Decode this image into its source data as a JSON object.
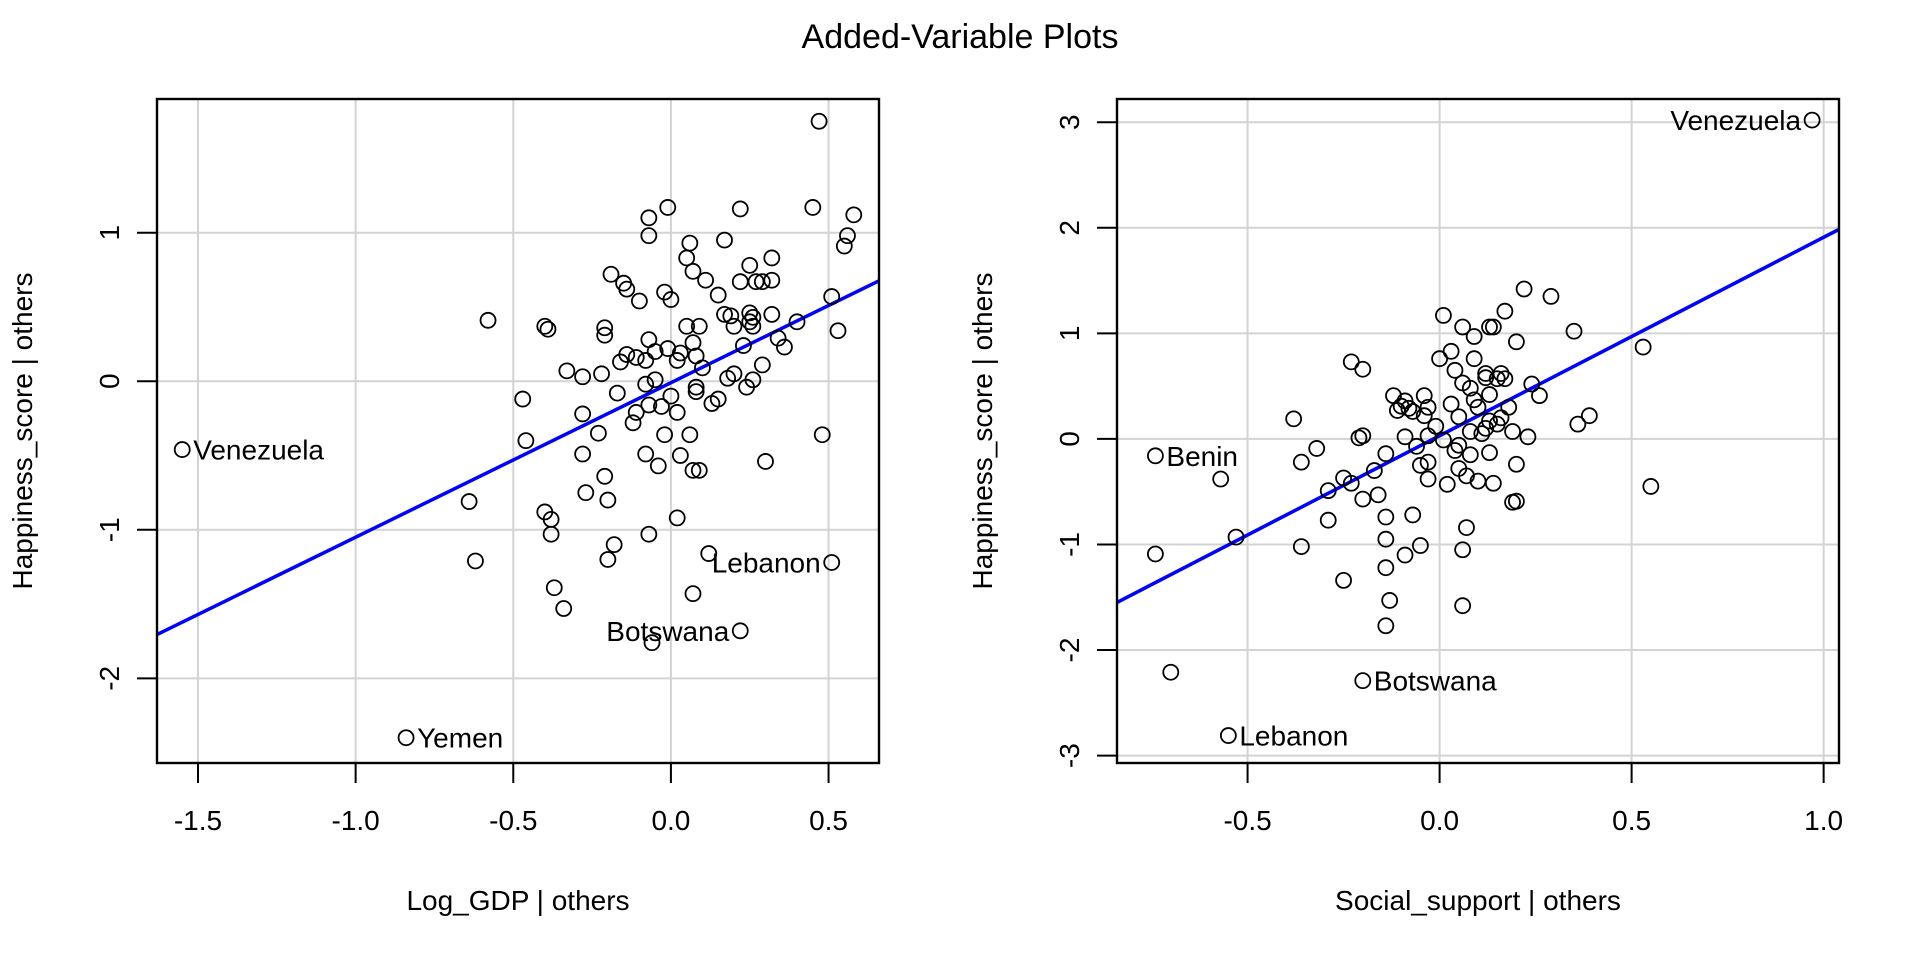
{
  "title": "Added-Variable Plots",
  "chart_data": [
    {
      "type": "scatter",
      "xlabel": "Log_GDP | others",
      "ylabel": "Happiness_score  | others",
      "xlim": [
        -1.63,
        0.66
      ],
      "ylim": [
        -2.57,
        1.9
      ],
      "xticks": [
        -1.5,
        -1.0,
        -0.5,
        0.0,
        0.5
      ],
      "xtick_labels": [
        "-1.5",
        "-1.0",
        "-0.5",
        "0.0",
        "0.5"
      ],
      "yticks": [
        -2,
        -1,
        0,
        1
      ],
      "ytick_labels": [
        "-2",
        "-1",
        "0",
        "1"
      ],
      "grid": true,
      "fit_line": {
        "color": "#0000ff",
        "slope": 1.04,
        "intercept": -0.01
      },
      "labeled_points": [
        {
          "label": "Venezuela",
          "x": -1.55,
          "y": -0.46,
          "side": "right"
        },
        {
          "label": "Yemen",
          "x": -0.84,
          "y": -2.4,
          "side": "right"
        },
        {
          "label": "Lebanon",
          "x": 0.51,
          "y": -1.22,
          "side": "left"
        },
        {
          "label": "Botswana",
          "x": 0.22,
          "y": -1.68,
          "side": "left"
        }
      ],
      "points": [
        [
          0.47,
          1.75
        ],
        [
          -0.01,
          1.17
        ],
        [
          -0.07,
          1.1
        ],
        [
          0.22,
          1.16
        ],
        [
          0.45,
          1.17
        ],
        [
          -0.07,
          0.98
        ],
        [
          0.58,
          1.12
        ],
        [
          0.06,
          0.93
        ],
        [
          0.56,
          0.98
        ],
        [
          0.55,
          0.91
        ],
        [
          0.17,
          0.95
        ],
        [
          0.05,
          0.83
        ],
        [
          0.32,
          0.83
        ],
        [
          0.25,
          0.78
        ],
        [
          0.07,
          0.74
        ],
        [
          -0.19,
          0.72
        ],
        [
          0.29,
          0.67
        ],
        [
          -0.15,
          0.66
        ],
        [
          -0.14,
          0.62
        ],
        [
          0.22,
          0.67
        ],
        [
          0.27,
          0.67
        ],
        [
          0.32,
          0.68
        ],
        [
          -0.1,
          0.54
        ],
        [
          0.51,
          0.57
        ],
        [
          0.17,
          0.45
        ],
        [
          0.19,
          0.44
        ],
        [
          0.25,
          0.46
        ],
        [
          0.26,
          0.43
        ],
        [
          0.25,
          0.4
        ],
        [
          0.26,
          0.37
        ],
        [
          0.32,
          0.45
        ],
        [
          0.4,
          0.4
        ],
        [
          -0.58,
          0.41
        ],
        [
          -0.4,
          0.37
        ],
        [
          -0.39,
          0.35
        ],
        [
          -0.21,
          0.36
        ],
        [
          -0.21,
          0.31
        ],
        [
          0.05,
          0.37
        ],
        [
          0.09,
          0.37
        ],
        [
          0.2,
          0.37
        ],
        [
          -0.07,
          0.28
        ],
        [
          0.07,
          0.26
        ],
        [
          0.34,
          0.29
        ],
        [
          0.53,
          0.34
        ],
        [
          0.29,
          0.11
        ],
        [
          0.08,
          0.17
        ],
        [
          0.03,
          0.19
        ],
        [
          -0.01,
          0.22
        ],
        [
          -0.05,
          0.2
        ],
        [
          0.02,
          0.14
        ],
        [
          -0.33,
          0.07
        ],
        [
          -0.28,
          0.03
        ],
        [
          -0.11,
          0.16
        ],
        [
          -0.22,
          0.05
        ],
        [
          -0.17,
          -0.08
        ],
        [
          -0.08,
          0.14
        ],
        [
          0.2,
          0.05
        ],
        [
          0.26,
          0.01
        ],
        [
          0.24,
          -0.04
        ],
        [
          0.15,
          -0.12
        ],
        [
          0.08,
          -0.07
        ],
        [
          0.08,
          -0.04
        ],
        [
          -0.08,
          -0.02
        ],
        [
          0.0,
          -0.1
        ],
        [
          -0.07,
          -0.16
        ],
        [
          -0.11,
          -0.21
        ],
        [
          -0.03,
          -0.17
        ],
        [
          0.02,
          -0.21
        ],
        [
          -0.47,
          -0.12
        ],
        [
          -0.28,
          -0.22
        ],
        [
          -0.23,
          -0.35
        ],
        [
          -0.02,
          -0.36
        ],
        [
          0.06,
          -0.36
        ],
        [
          0.07,
          -0.6
        ],
        [
          0.03,
          -0.5
        ],
        [
          -0.08,
          -0.49
        ],
        [
          -0.04,
          -0.57
        ],
        [
          0.09,
          -0.6
        ],
        [
          0.3,
          -0.54
        ],
        [
          0.48,
          -0.36
        ],
        [
          -0.46,
          -0.4
        ],
        [
          -0.28,
          -0.49
        ],
        [
          -0.21,
          -0.64
        ],
        [
          -0.27,
          -0.75
        ],
        [
          -0.2,
          -0.8
        ],
        [
          -0.4,
          -0.88
        ],
        [
          -0.38,
          -0.93
        ],
        [
          -0.38,
          -1.03
        ],
        [
          -0.07,
          -1.03
        ],
        [
          0.02,
          -0.92
        ],
        [
          -0.64,
          -0.81
        ],
        [
          -0.62,
          -1.21
        ],
        [
          -0.18,
          -1.1
        ],
        [
          0.12,
          -1.16
        ],
        [
          0.07,
          -1.43
        ],
        [
          -0.37,
          -1.39
        ],
        [
          -0.34,
          -1.53
        ],
        [
          -0.06,
          -1.76
        ],
        [
          -0.2,
          -1.2
        ],
        [
          -0.14,
          0.18
        ],
        [
          -0.16,
          0.13
        ],
        [
          0.1,
          0.09
        ],
        [
          0.13,
          -0.15
        ],
        [
          -0.12,
          -0.28
        ],
        [
          0.18,
          0.02
        ],
        [
          0.36,
          0.23
        ],
        [
          0.23,
          0.24
        ],
        [
          -0.05,
          0.01
        ],
        [
          0.0,
          0.55
        ],
        [
          0.15,
          0.58
        ],
        [
          0.11,
          0.68
        ],
        [
          -0.02,
          0.6
        ]
      ]
    },
    {
      "type": "scatter",
      "xlabel": "Social_support | others",
      "ylabel": "Happiness_score  | others",
      "xlim": [
        -0.84,
        1.04
      ],
      "ylim": [
        -3.07,
        3.22
      ],
      "xticks": [
        -0.5,
        0.0,
        0.5,
        1.0
      ],
      "xtick_labels": [
        "-0.5",
        "0.0",
        "0.5",
        "1.0"
      ],
      "yticks": [
        -3,
        -2,
        -1,
        0,
        1,
        2,
        3
      ],
      "ytick_labels": [
        "-3",
        "-2",
        "-1",
        "0",
        "1",
        "2",
        "3"
      ],
      "grid": true,
      "fit_line": {
        "color": "#0000ff",
        "slope": 1.88,
        "intercept": 0.03
      },
      "labeled_points": [
        {
          "label": "Venezuela",
          "x": 0.97,
          "y": 3.02,
          "side": "left"
        },
        {
          "label": "Benin",
          "x": -0.74,
          "y": -0.16,
          "side": "right"
        },
        {
          "label": "Botswana",
          "x": -0.2,
          "y": -2.29,
          "side": "right"
        },
        {
          "label": "Lebanon",
          "x": -0.55,
          "y": -2.81,
          "side": "right"
        }
      ],
      "points": [
        [
          0.22,
          1.42
        ],
        [
          0.29,
          1.35
        ],
        [
          0.17,
          1.21
        ],
        [
          0.01,
          1.17
        ],
        [
          0.13,
          1.06
        ],
        [
          0.06,
          1.06
        ],
        [
          0.14,
          1.06
        ],
        [
          0.35,
          1.02
        ],
        [
          0.09,
          0.97
        ],
        [
          0.2,
          0.92
        ],
        [
          0.53,
          0.87
        ],
        [
          0.03,
          0.83
        ],
        [
          0.09,
          0.76
        ],
        [
          0.0,
          0.76
        ],
        [
          -0.23,
          0.73
        ],
        [
          -0.2,
          0.66
        ],
        [
          0.04,
          0.65
        ],
        [
          0.12,
          0.62
        ],
        [
          0.16,
          0.62
        ],
        [
          0.17,
          0.57
        ],
        [
          0.15,
          0.57
        ],
        [
          0.06,
          0.53
        ],
        [
          0.08,
          0.48
        ],
        [
          0.24,
          0.52
        ],
        [
          0.26,
          0.41
        ],
        [
          0.13,
          0.42
        ],
        [
          -0.04,
          0.41
        ],
        [
          -0.12,
          0.41
        ],
        [
          -0.09,
          0.36
        ],
        [
          -0.08,
          0.29
        ],
        [
          -0.03,
          0.3
        ],
        [
          -0.04,
          0.22
        ],
        [
          0.03,
          0.33
        ],
        [
          0.05,
          0.21
        ],
        [
          0.13,
          0.17
        ],
        [
          0.39,
          0.22
        ],
        [
          0.36,
          0.14
        ],
        [
          0.08,
          0.07
        ],
        [
          0.12,
          0.1
        ],
        [
          0.15,
          0.14
        ],
        [
          0.19,
          0.07
        ],
        [
          0.23,
          0.02
        ],
        [
          -0.38,
          0.19
        ],
        [
          -0.21,
          0.01
        ],
        [
          -0.2,
          0.03
        ],
        [
          -0.09,
          0.02
        ],
        [
          -0.06,
          -0.07
        ],
        [
          0.01,
          -0.01
        ],
        [
          -0.03,
          0.03
        ],
        [
          0.05,
          -0.06
        ],
        [
          0.08,
          -0.15
        ],
        [
          0.13,
          -0.13
        ],
        [
          -0.32,
          -0.09
        ],
        [
          -0.36,
          -0.22
        ],
        [
          -0.14,
          -0.14
        ],
        [
          -0.03,
          -0.22
        ],
        [
          0.05,
          -0.28
        ],
        [
          0.07,
          -0.35
        ],
        [
          0.1,
          -0.4
        ],
        [
          0.14,
          -0.42
        ],
        [
          0.2,
          -0.24
        ],
        [
          0.55,
          -0.45
        ],
        [
          -0.29,
          -0.49
        ],
        [
          -0.25,
          -0.37
        ],
        [
          -0.23,
          -0.42
        ],
        [
          -0.17,
          -0.3
        ],
        [
          -0.2,
          -0.57
        ],
        [
          -0.16,
          -0.53
        ],
        [
          0.02,
          -0.43
        ],
        [
          -0.03,
          -0.38
        ],
        [
          0.2,
          -0.59
        ],
        [
          0.19,
          -0.6
        ],
        [
          -0.07,
          -0.72
        ],
        [
          -0.29,
          -0.77
        ],
        [
          -0.14,
          -0.74
        ],
        [
          -0.53,
          -0.93
        ],
        [
          -0.36,
          -1.02
        ],
        [
          0.07,
          -0.84
        ],
        [
          -0.14,
          -0.95
        ],
        [
          -0.05,
          -1.01
        ],
        [
          -0.09,
          -1.1
        ],
        [
          0.06,
          -1.05
        ],
        [
          -0.25,
          -1.34
        ],
        [
          -0.14,
          -1.22
        ],
        [
          -0.13,
          -1.53
        ],
        [
          -0.14,
          -1.77
        ],
        [
          0.06,
          -1.58
        ],
        [
          -0.74,
          -1.09
        ],
        [
          -0.7,
          -2.21
        ],
        [
          -0.57,
          -0.38
        ],
        [
          -0.1,
          0.31
        ],
        [
          -0.07,
          0.26
        ],
        [
          0.1,
          0.3
        ],
        [
          0.11,
          0.05
        ],
        [
          -0.01,
          0.12
        ],
        [
          -0.11,
          0.27
        ],
        [
          0.09,
          0.37
        ],
        [
          0.18,
          0.3
        ],
        [
          0.04,
          -0.11
        ],
        [
          -0.05,
          -0.25
        ],
        [
          0.12,
          0.58
        ],
        [
          0.16,
          0.2
        ]
      ]
    }
  ]
}
